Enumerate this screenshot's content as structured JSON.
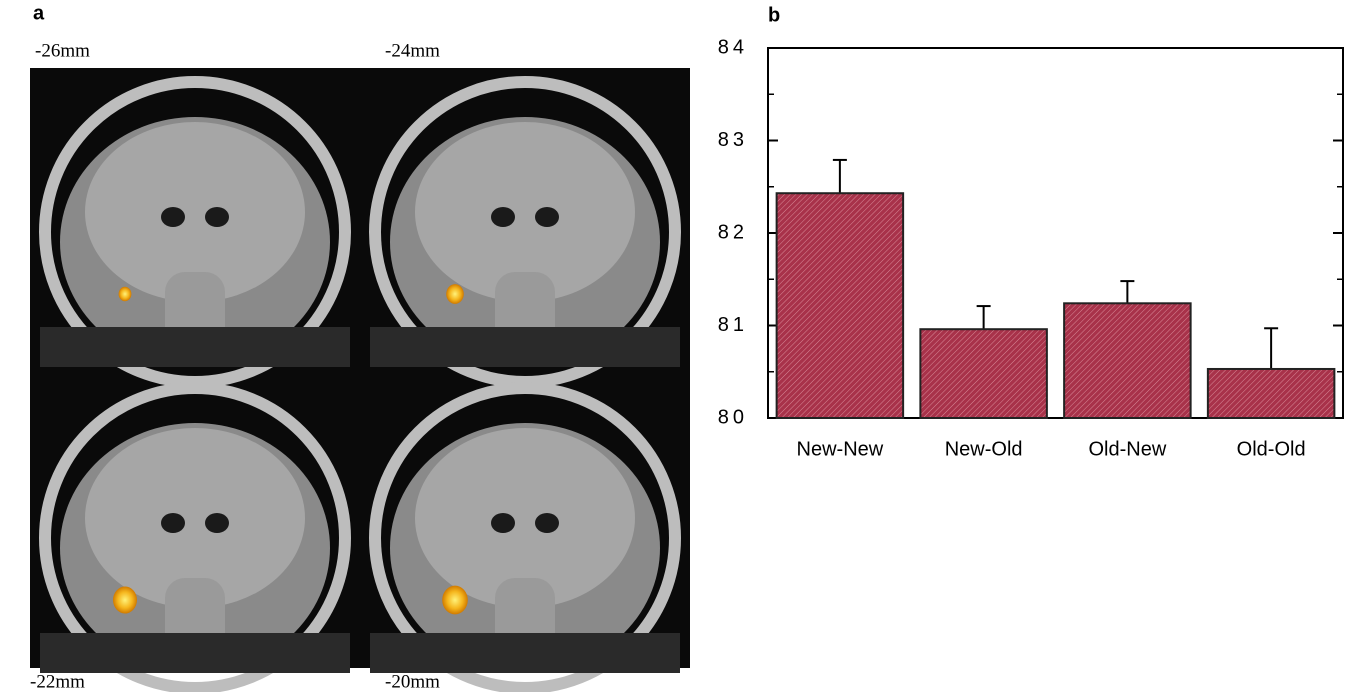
{
  "figure": {
    "panel_a_label": "a",
    "slice_labels": [
      "-26mm",
      "-24mm",
      "-22mm",
      "-20mm"
    ]
  },
  "chart_data": {
    "type": "bar",
    "panel_label": "b",
    "categories": [
      "New-New",
      "New-Old",
      "Old-New",
      "Old-Old"
    ],
    "values": [
      82.43,
      80.96,
      81.24,
      80.53
    ],
    "errors": [
      0.36,
      0.25,
      0.24,
      0.44
    ],
    "color": "#a8324a",
    "ylim": [
      80,
      84
    ],
    "yticks": [
      80,
      81,
      82,
      83,
      84
    ],
    "yminorticks": [
      80.5,
      81.5,
      82.5,
      83.5
    ]
  }
}
